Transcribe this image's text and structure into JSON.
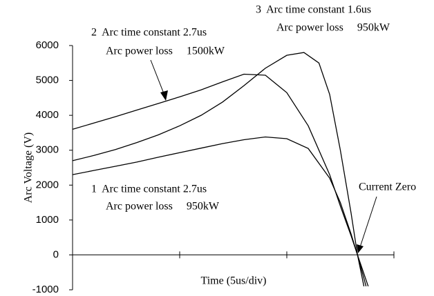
{
  "chart_data": {
    "type": "line",
    "x_label": "Time (5us/div)",
    "y_label": "Arc Voltage (V)",
    "xlim": [
      0,
      15
    ],
    "xticks": [
      0,
      5,
      10,
      15
    ],
    "xtick_labels": false,
    "ylim": [
      -1000,
      6000
    ],
    "yticks": [
      -1000,
      0,
      1000,
      2000,
      3000,
      4000,
      5000,
      6000
    ],
    "grid": false,
    "series": [
      {
        "color": "#000000",
        "x": [
          0,
          1,
          2,
          3,
          4,
          5,
          6,
          7,
          8,
          9,
          10,
          11,
          12,
          12.5,
          13,
          13.3,
          13.6
        ],
        "values": [
          2300,
          2420,
          2540,
          2660,
          2800,
          2930,
          3060,
          3190,
          3300,
          3380,
          3330,
          3050,
          2200,
          1500,
          600,
          0,
          -900
        ]
      },
      {
        "color": "#000000",
        "x": [
          0,
          1,
          2,
          3,
          4,
          5,
          6,
          7,
          8,
          9,
          10,
          11,
          12,
          12.5,
          13,
          13.3,
          13.7
        ],
        "values": [
          3600,
          3780,
          3960,
          4150,
          4340,
          4530,
          4730,
          4960,
          5180,
          5150,
          4650,
          3700,
          2300,
          1400,
          550,
          0,
          -900
        ]
      },
      {
        "color": "#000000",
        "x": [
          0,
          1,
          2,
          3,
          4,
          5,
          6,
          7,
          8,
          9,
          10,
          10.8,
          11.5,
          12,
          12.5,
          13,
          13.3,
          13.8
        ],
        "values": [
          2700,
          2850,
          3020,
          3220,
          3440,
          3700,
          4000,
          4380,
          4850,
          5350,
          5720,
          5800,
          5500,
          4600,
          3000,
          1200,
          0,
          -900
        ]
      }
    ],
    "annotations": [
      {
        "lines": [
          "1  Arc time constant 2.7us",
          "Arc power loss     950kW"
        ]
      },
      {
        "lines": [
          "2  Arc time constant 2.7us",
          "Arc power loss     1500kW"
        ]
      },
      {
        "lines": [
          "3  Arc time constant 1.6us",
          "Arc power loss     950kW"
        ]
      },
      {
        "lines": [
          "Current Zero"
        ]
      }
    ]
  }
}
